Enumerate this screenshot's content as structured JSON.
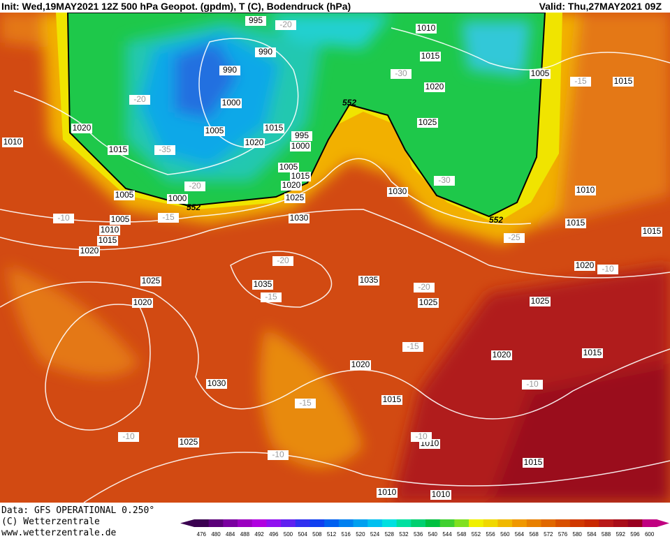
{
  "header": {
    "left": "Init: Wed,19MAY2021  12Z  500 hPa Geopot. (gpdm), T (C), Bodendruck (hPa)",
    "right": "Valid: Thu,27MAY2021 09Z"
  },
  "footer": {
    "lines": [
      "Data: GFS OPERATIONAL 0.250°",
      "(C) Wetterzentrale",
      "www.wetterzentrale.de"
    ]
  },
  "colorbar": {
    "ticks": [
      476,
      480,
      484,
      488,
      492,
      496,
      500,
      504,
      508,
      512,
      516,
      520,
      524,
      528,
      532,
      536,
      540,
      544,
      548,
      552,
      556,
      560,
      564,
      568,
      572,
      576,
      580,
      584,
      588,
      592,
      596,
      600
    ],
    "colors": [
      "#3a0050",
      "#5a0078",
      "#7a00a0",
      "#9a00c0",
      "#b000e0",
      "#9010f0",
      "#6020f0",
      "#3030f0",
      "#1040f0",
      "#0060f0",
      "#0080f0",
      "#00a0f0",
      "#00c0f0",
      "#00e0e0",
      "#00e0a0",
      "#00d070",
      "#00c040",
      "#40d030",
      "#80e020",
      "#f0f000",
      "#f0d800",
      "#f0b800",
      "#f09800",
      "#e88000",
      "#e06800",
      "#d85000",
      "#d03800",
      "#c82800",
      "#b81818",
      "#a80c18",
      "#980020",
      "#c00080"
    ]
  },
  "pressure_labels": [
    "995",
    "1010",
    "990",
    "1015",
    "990",
    "1005",
    "1015",
    "1020",
    "1000",
    "1020",
    "1015",
    "1025",
    "1010",
    "1005",
    "995",
    "1020",
    "1000",
    "1015",
    "1005",
    "1015",
    "1020",
    "1030",
    "1010",
    "1005",
    "1000",
    "1025",
    "1005",
    "1030",
    "1015",
    "1010",
    "1015",
    "1015",
    "1020",
    "1020",
    "1025",
    "1035",
    "1035",
    "1020",
    "1025",
    "1025",
    "1020",
    "1015",
    "1020",
    "1030",
    "1015",
    "1010",
    "1025",
    "1015",
    "1010",
    "1010"
  ],
  "temperature_labels": [
    "-20",
    "-30",
    "-15",
    "-20",
    "-35",
    "-30",
    "-20",
    "-10",
    "-15",
    "-25",
    "-20",
    "-10",
    "-15",
    "-20",
    "-15",
    "-10",
    "-15",
    "-10",
    "-10",
    "-10"
  ],
  "geopotential_labels": [
    "552",
    "552",
    "552"
  ]
}
